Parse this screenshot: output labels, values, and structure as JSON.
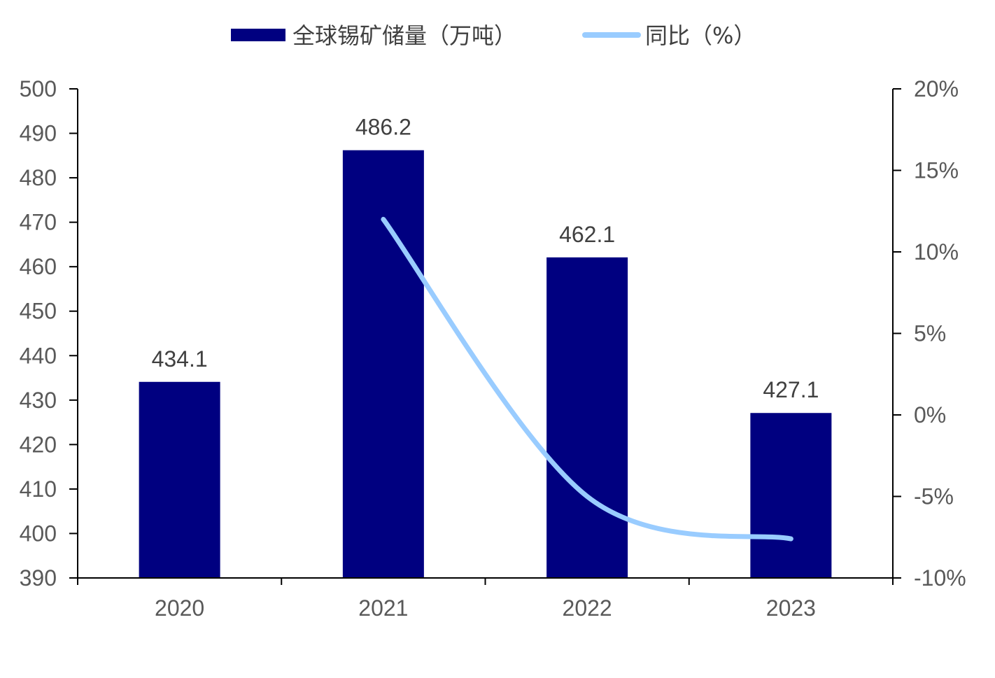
{
  "chart_data": {
    "type": "bar",
    "categories": [
      "2020",
      "2021",
      "2022",
      "2023"
    ],
    "series": [
      {
        "name": "全球锡矿储量（万吨）",
        "type": "bar",
        "axis": "left",
        "color": "#000080",
        "values": [
          434.1,
          486.2,
          462.1,
          427.1
        ],
        "data_labels": [
          "434.1",
          "486.2",
          "462.1",
          "427.1"
        ]
      },
      {
        "name": "同比（%）",
        "type": "line",
        "axis": "right",
        "color": "#99CCFF",
        "smooth": true,
        "values": [
          null,
          12.0,
          -5.0,
          -7.6
        ]
      }
    ],
    "left_axis": {
      "min": 390,
      "max": 500,
      "ticks": [
        "390",
        "400",
        "410",
        "420",
        "430",
        "440",
        "450",
        "460",
        "470",
        "480",
        "490",
        "500"
      ]
    },
    "right_axis": {
      "min": -10,
      "max": 20,
      "ticks": [
        "-10%",
        "-5%",
        "0%",
        "5%",
        "10%",
        "15%",
        "20%"
      ]
    },
    "legend_position": "top",
    "grid": false
  }
}
